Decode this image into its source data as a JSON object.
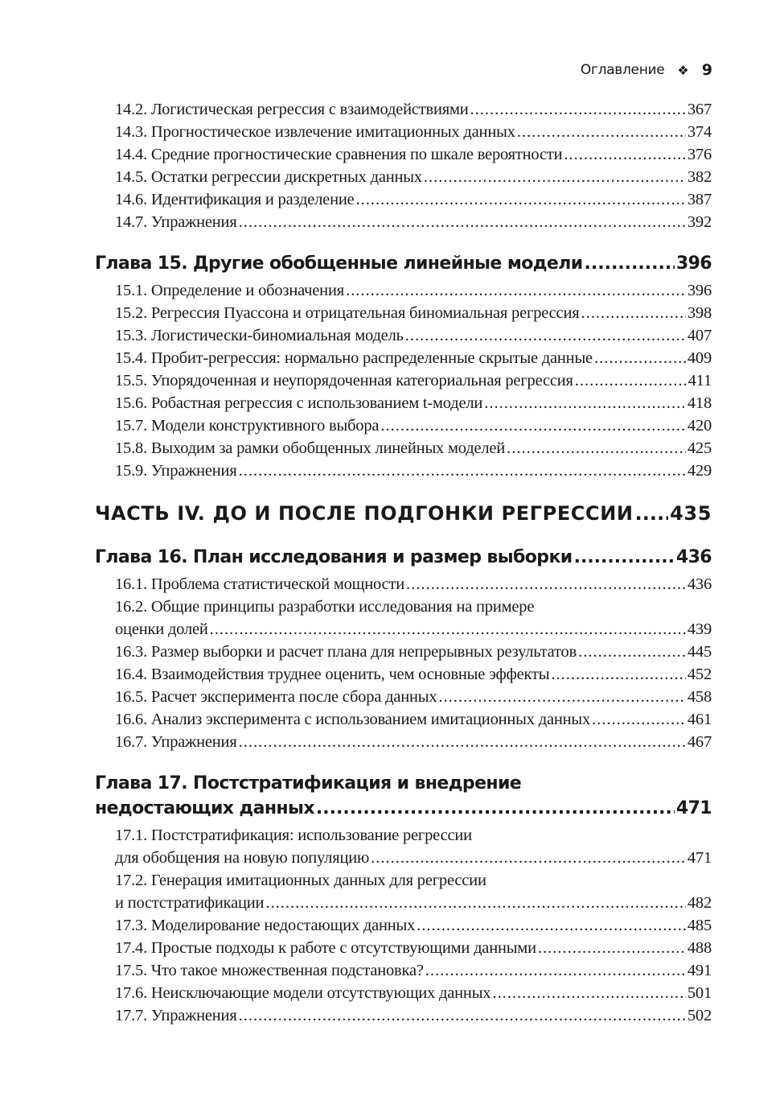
{
  "header": {
    "title": "Оглавление",
    "ornament": "❖",
    "page": "9"
  },
  "toc": [
    {
      "type": "entry",
      "text": "14.2. Логистическая регрессия с взаимодействиями",
      "page": "367"
    },
    {
      "type": "entry",
      "text": "14.3. Прогностическое извлечение имитационных данных",
      "page": "374"
    },
    {
      "type": "entry",
      "text": "14.4. Средние прогностические сравнения по шкале вероятности",
      "page": "376"
    },
    {
      "type": "entry",
      "text": "14.5. Остатки регрессии дискретных данных",
      "page": "382"
    },
    {
      "type": "entry",
      "text": "14.6. Идентификация и разделение",
      "page": "387"
    },
    {
      "type": "entry",
      "text": "14.7. Упражнения",
      "page": "392"
    },
    {
      "type": "chapter",
      "text": "Глава 15. Другие обобщенные линейные модели",
      "page": "396"
    },
    {
      "type": "entry",
      "text": "15.1. Определение и обозначения",
      "page": "396"
    },
    {
      "type": "entry",
      "text": "15.2. Регрессия Пуассона и отрицательная биномиальная регрессия",
      "page": "398"
    },
    {
      "type": "entry",
      "text": "15.3. Логистически-биномиальная модель",
      "page": "407"
    },
    {
      "type": "entry",
      "text": "15.4. Пробит-регрессия: нормально распределенные скрытые данные",
      "page": "409"
    },
    {
      "type": "entry",
      "text": "15.5. Упорядоченная и неупорядоченная категориальная регрессия",
      "page": "411"
    },
    {
      "type": "entry",
      "text": "15.6. Робастная регрессия с использованием t-модели",
      "page": "418"
    },
    {
      "type": "entry",
      "text": "15.7. Модели конструктивного выбора",
      "page": "420"
    },
    {
      "type": "entry",
      "text": "15.8. Выходим за рамки обобщенных линейных моделей",
      "page": "425"
    },
    {
      "type": "entry",
      "text": "15.9. Упражнения",
      "page": "429"
    },
    {
      "type": "part",
      "text": "ЧАСТЬ IV. ДО И ПОСЛЕ ПОДГОНКИ РЕГРЕССИИ",
      "page": "435"
    },
    {
      "type": "chapter",
      "text": "Глава 16. План исследования и размер выборки",
      "page": "436"
    },
    {
      "type": "entry",
      "text": "16.1. Проблема статистической мощности",
      "page": "436"
    },
    {
      "type": "entry",
      "line1": "16.2. Общие принципы разработки исследования на примере",
      "text": "оценки долей",
      "page": "439"
    },
    {
      "type": "entry",
      "text": "16.3. Размер выборки и расчет плана для непрерывных результатов",
      "page": "445"
    },
    {
      "type": "entry",
      "text": "16.4. Взаимодействия труднее оценить, чем основные эффекты",
      "page": "452"
    },
    {
      "type": "entry",
      "text": "16.5. Расчет эксперимента после сбора данных",
      "page": "458"
    },
    {
      "type": "entry",
      "text": "16.6. Анализ эксперимента с использованием имитационных данных",
      "page": "461"
    },
    {
      "type": "entry",
      "text": "16.7. Упражнения",
      "page": "467"
    },
    {
      "type": "chapter",
      "line1": "Глава 17. Постстратификация и внедрение",
      "text": "недостающих данных",
      "page": "471"
    },
    {
      "type": "entry",
      "line1": "17.1. Постстратификация: использование регрессии",
      "text": "для обобщения на новую популяцию",
      "page": "471"
    },
    {
      "type": "entry",
      "line1": "17.2. Генерация имитационных данных для регрессии",
      "text": "и постстратификации",
      "page": "482"
    },
    {
      "type": "entry",
      "text": "17.3. Моделирование недостающих данных",
      "page": "485"
    },
    {
      "type": "entry",
      "text": "17.4. Простые подходы к работе с отсутствующими данными",
      "page": "488"
    },
    {
      "type": "entry",
      "text": "17.5. Что такое множественная подстановка?",
      "page": "491"
    },
    {
      "type": "entry",
      "text": "17.6. Неисключающие модели отсутствующих данных",
      "page": "501"
    },
    {
      "type": "entry",
      "text": "17.7. Упражнения",
      "page": "502"
    }
  ]
}
